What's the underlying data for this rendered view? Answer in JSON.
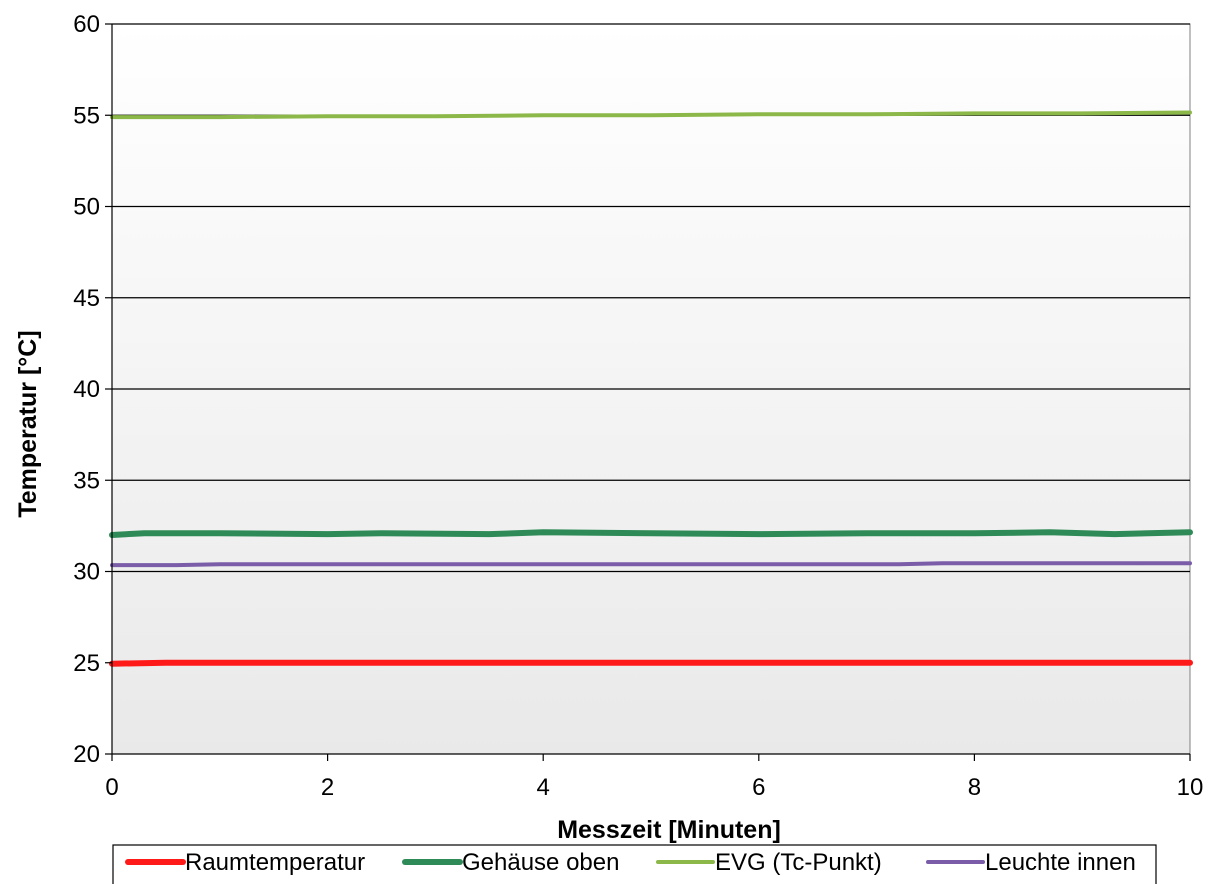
{
  "chart_data": {
    "type": "line",
    "title": "",
    "xlabel": "Messzeit [Minuten]",
    "ylabel": "Temperatur [°C]",
    "xlim": [
      0,
      10
    ],
    "ylim": [
      20,
      60
    ],
    "xticks": [
      0,
      2,
      4,
      6,
      8,
      10
    ],
    "yticks": [
      20,
      25,
      30,
      35,
      40,
      45,
      50,
      55,
      60
    ],
    "grid": true,
    "legend_position": "bottom",
    "series": [
      {
        "name": "Raumtemperatur",
        "color": "#ff1a1a",
        "x": [
          0,
          0.5,
          1,
          2,
          3,
          4,
          5,
          6,
          7,
          8,
          9,
          10
        ],
        "y": [
          24.95,
          25.0,
          25.0,
          25.0,
          25.0,
          25.0,
          25.0,
          25.0,
          25.0,
          25.0,
          25.0,
          25.0
        ]
      },
      {
        "name": "Gehäuse oben",
        "color": "#2e8b57",
        "x": [
          0,
          0.3,
          1,
          2,
          2.5,
          3.5,
          4,
          5,
          6,
          7,
          8,
          8.7,
          9.3,
          10
        ],
        "y": [
          32.0,
          32.1,
          32.1,
          32.05,
          32.1,
          32.05,
          32.15,
          32.1,
          32.05,
          32.1,
          32.1,
          32.15,
          32.05,
          32.15
        ]
      },
      {
        "name": "EVG (Tc-Punkt)",
        "color": "#8cb84a",
        "x": [
          0,
          1,
          2,
          3,
          4,
          5,
          6,
          7,
          8,
          9,
          10
        ],
        "y": [
          54.9,
          54.9,
          54.95,
          54.95,
          55.0,
          55.0,
          55.05,
          55.05,
          55.1,
          55.1,
          55.15
        ]
      },
      {
        "name": "Leuchte innen",
        "color": "#7a5ca8",
        "x": [
          0,
          0.6,
          1,
          2,
          3,
          4,
          5,
          6,
          7,
          7.3,
          7.7,
          8,
          9,
          10
        ],
        "y": [
          30.35,
          30.35,
          30.4,
          30.4,
          30.4,
          30.4,
          30.4,
          30.4,
          30.4,
          30.4,
          30.45,
          30.45,
          30.45,
          30.45
        ]
      }
    ]
  }
}
